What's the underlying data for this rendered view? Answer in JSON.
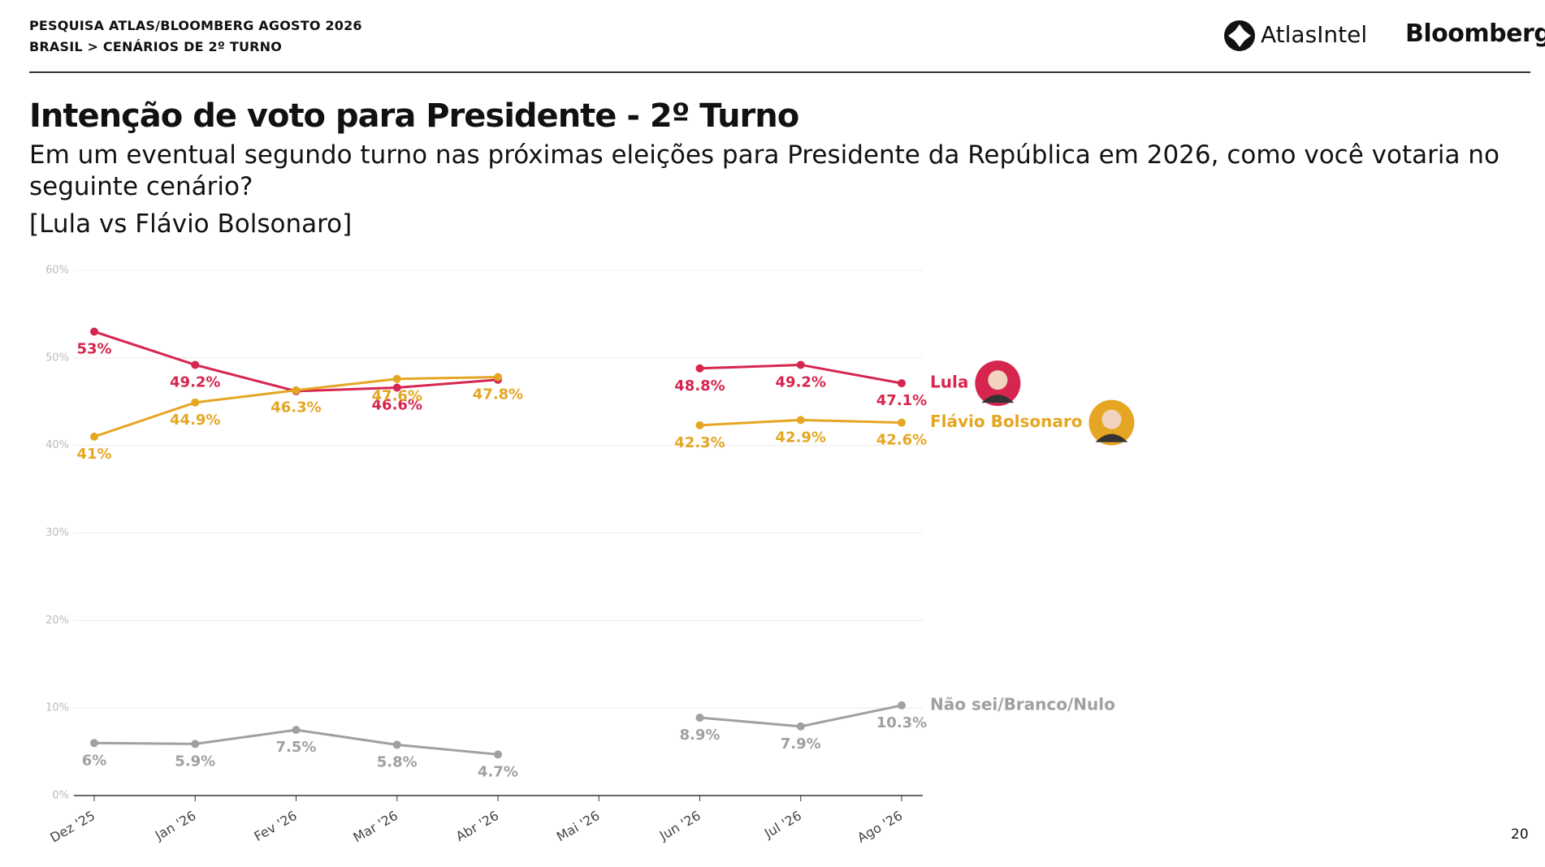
{
  "header": {
    "line1": "PESQUISA ATLAS/BLOOMBERG AGOSTO 2026",
    "line2": "BRASIL > CENÁRIOS DE 2º TURNO",
    "brand1": "AtlasIntel",
    "brand2": "Bloomberg"
  },
  "title": "Intenção de voto para Presidente - 2º Turno",
  "subtitle": "Em um eventual segundo turno nas próximas eleições para Presidente da República em 2026, como você votaria no seguinte cenário?",
  "scenario": "[Lula vs Flávio Bolsonaro]",
  "page_number": "20",
  "chart_data": {
    "type": "line",
    "categories": [
      "Dez '25",
      "Jan '26",
      "Fev '26",
      "Mar '26",
      "Abr '26",
      "Mai '26",
      "Jun '26",
      "Jul '26",
      "Ago '26"
    ],
    "series": [
      {
        "name": "Lula",
        "color": "#d6264f",
        "values": [
          53,
          49.2,
          46.2,
          46.6,
          47.5,
          null,
          48.8,
          49.2,
          47.1
        ],
        "value_labels": [
          "53%",
          "49.2%",
          null,
          "46.6%",
          null,
          null,
          "48.8%",
          "49.2%",
          "47.1%"
        ]
      },
      {
        "name": "Flávio Bolsonaro",
        "color": "#e5a623",
        "values": [
          41,
          44.9,
          46.3,
          47.6,
          47.8,
          null,
          42.3,
          42.9,
          42.6
        ],
        "value_labels": [
          "41%",
          "44.9%",
          "46.3%",
          "47.6%",
          "47.8%",
          null,
          "42.3%",
          "42.9%",
          "42.6%"
        ]
      },
      {
        "name": "Não sei/Branco/Nulo",
        "color": "#a0a0a0",
        "values": [
          6,
          5.9,
          7.5,
          5.8,
          4.7,
          null,
          8.9,
          7.9,
          10.3
        ],
        "value_labels": [
          "6%",
          "5.9%",
          "7.5%",
          "5.8%",
          "4.7%",
          null,
          "8.9%",
          "7.9%",
          "10.3%"
        ]
      }
    ],
    "ylim": [
      0,
      60
    ],
    "yticks": [
      {
        "value": 0,
        "label": "0%"
      },
      {
        "value": 10,
        "label": "10%"
      },
      {
        "value": 20,
        "label": "20%"
      },
      {
        "value": 30,
        "label": "30%"
      },
      {
        "value": 40,
        "label": "40%"
      },
      {
        "value": 50,
        "label": "50%"
      },
      {
        "value": 60,
        "label": "60%"
      }
    ],
    "grid": true
  }
}
